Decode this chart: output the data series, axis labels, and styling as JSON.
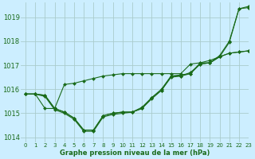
{
  "title": "Graphe pression niveau de la mer (hPa)",
  "bg_color": "#cceeff",
  "grid_color": "#aacccc",
  "line_color": "#1a6b1a",
  "marker_color": "#1a6b1a",
  "xlim": [
    -0.5,
    23
  ],
  "ylim": [
    1013.8,
    1019.6
  ],
  "yticks": [
    1014,
    1015,
    1016,
    1017,
    1018,
    1019
  ],
  "xticks": [
    0,
    1,
    2,
    3,
    4,
    5,
    6,
    7,
    8,
    9,
    10,
    11,
    12,
    13,
    14,
    15,
    16,
    17,
    18,
    19,
    20,
    21,
    22,
    23
  ],
  "series": [
    [
      1015.8,
      1015.8,
      1015.75,
      1015.2,
      1015.05,
      1014.8,
      1014.3,
      1014.3,
      1014.9,
      1015.0,
      1015.05,
      1015.05,
      1015.2,
      1015.6,
      1015.95,
      1016.55,
      1016.6,
      1016.65,
      1017.1,
      1017.1,
      1017.4,
      1018.0,
      1019.35,
      1019.45
    ],
    [
      1015.8,
      1015.8,
      1015.75,
      1015.2,
      1015.05,
      1014.8,
      1014.3,
      1014.3,
      1014.9,
      1015.0,
      1015.05,
      1015.05,
      1015.25,
      1015.65,
      1016.0,
      1016.55,
      1016.55,
      1016.7,
      1017.05,
      1017.1,
      1017.35,
      1017.95,
      1019.35,
      1019.4
    ],
    [
      1015.8,
      1015.8,
      1015.7,
      1015.15,
      1015.0,
      1014.75,
      1014.25,
      1014.25,
      1014.85,
      1014.95,
      1015.0,
      1015.05,
      1015.2,
      1015.65,
      1015.95,
      1016.5,
      1016.55,
      1016.65,
      1017.05,
      1017.1,
      1017.35,
      1017.5,
      1017.55,
      1017.6
    ],
    [
      1015.8,
      1015.8,
      1015.2,
      1015.2,
      1016.2,
      1016.25,
      1016.35,
      1016.45,
      1016.55,
      1016.6,
      1016.65,
      1016.65,
      1016.65,
      1016.65,
      1016.65,
      1016.65,
      1016.65,
      1017.05,
      1017.1,
      1017.2,
      1017.35,
      1017.5,
      1017.55,
      1017.6
    ]
  ]
}
